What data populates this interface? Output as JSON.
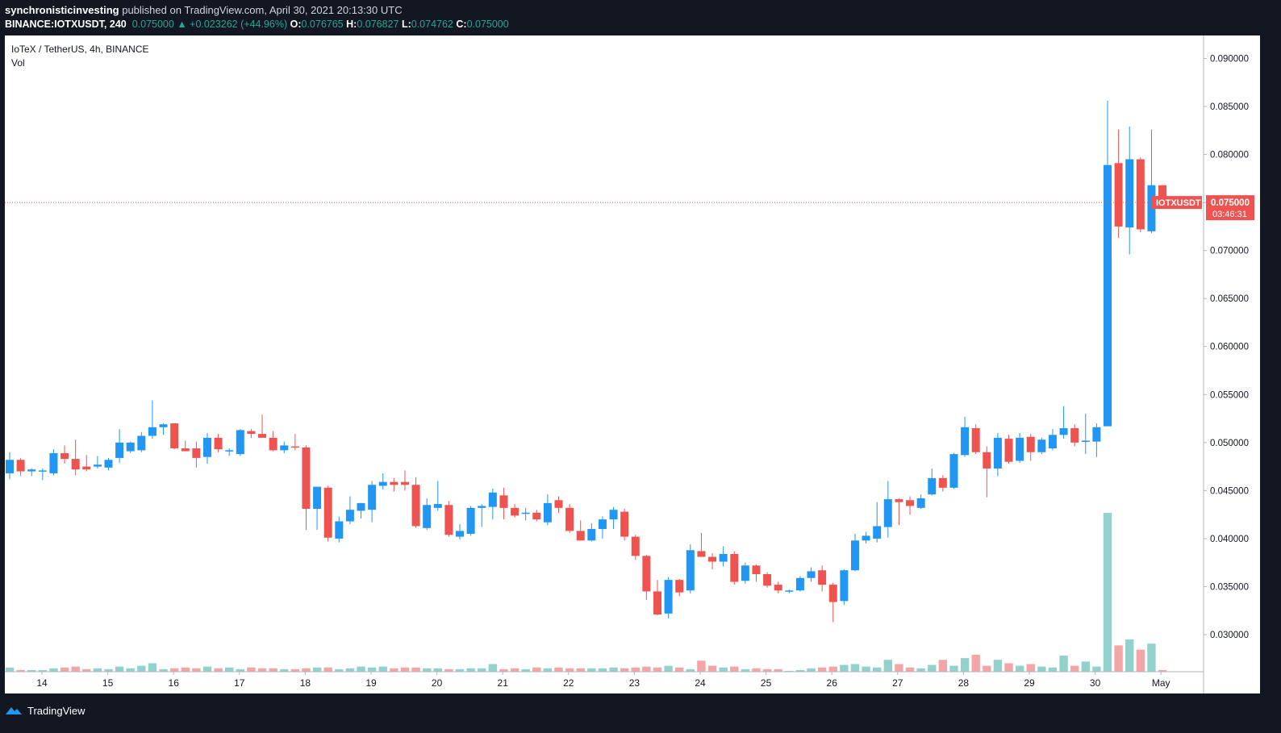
{
  "header": {
    "author": "synchronisticinvesting",
    "published_text": "published on TradingView.com, April 30, 2021 20:13:30 UTC",
    "symbol_interval": "BINANCE:IOTXUSDT, 240",
    "last": "0.075000",
    "change": "+0.023262 (+44.96%)",
    "o_label": "O:",
    "o_value": "0.076765",
    "h_label": "H:",
    "h_value": "0.076827",
    "l_label": "L:",
    "l_value": "0.074762",
    "c_label": "C:",
    "c_value": "0.075000"
  },
  "legend": {
    "title": "IoTeX / TetherUS, 4h, BINANCE",
    "volume_label": "Vol"
  },
  "price_tag": {
    "symbol": "IOTXUSDT",
    "price": "0.075000",
    "countdown": "03:46:31"
  },
  "footer": {
    "brand": "TradingView"
  },
  "colors": {
    "up": "#2196f3",
    "down": "#ef5350",
    "vol_up": "#93d2cc",
    "vol_down": "#f4a5a5",
    "price_line": "#ef5350"
  },
  "chart_data": {
    "type": "candlestick",
    "title": "IoTeX / TetherUS, 4h, BINANCE",
    "y_ticks": [
      "0.090000",
      "0.085000",
      "0.080000",
      "0.075000",
      "0.070000",
      "0.065000",
      "0.060000",
      "0.055000",
      "0.050000",
      "0.045000",
      "0.040000",
      "0.035000",
      "0.030000"
    ],
    "x_ticks": [
      "14",
      "15",
      "16",
      "17",
      "18",
      "19",
      "20",
      "21",
      "22",
      "23",
      "24",
      "25",
      "26",
      "27",
      "28",
      "29",
      "30",
      "May"
    ],
    "ylim": [
      0.02614,
      0.09239
    ],
    "current_price": 0.075,
    "grid": false,
    "candles": [
      {
        "o": 0.0468,
        "h": 0.049,
        "l": 0.0462,
        "c": 0.0482
      },
      {
        "o": 0.0482,
        "h": 0.0484,
        "l": 0.0465,
        "c": 0.047
      },
      {
        "o": 0.047,
        "h": 0.0473,
        "l": 0.0465,
        "c": 0.0472
      },
      {
        "o": 0.047,
        "h": 0.0473,
        "l": 0.0461,
        "c": 0.0471
      },
      {
        "o": 0.0468,
        "h": 0.0493,
        "l": 0.0466,
        "c": 0.0489
      },
      {
        "o": 0.0489,
        "h": 0.0497,
        "l": 0.0478,
        "c": 0.0483
      },
      {
        "o": 0.0483,
        "h": 0.0503,
        "l": 0.0466,
        "c": 0.0472
      },
      {
        "o": 0.0475,
        "h": 0.0487,
        "l": 0.047,
        "c": 0.0472
      },
      {
        "o": 0.0475,
        "h": 0.0486,
        "l": 0.0473,
        "c": 0.0477
      },
      {
        "o": 0.0474,
        "h": 0.0484,
        "l": 0.0471,
        "c": 0.0482
      },
      {
        "o": 0.0484,
        "h": 0.0514,
        "l": 0.0479,
        "c": 0.05
      },
      {
        "o": 0.0491,
        "h": 0.0501,
        "l": 0.0489,
        "c": 0.05
      },
      {
        "o": 0.0492,
        "h": 0.0511,
        "l": 0.049,
        "c": 0.0507
      },
      {
        "o": 0.0507,
        "h": 0.0544,
        "l": 0.0504,
        "c": 0.0516
      },
      {
        "o": 0.0516,
        "h": 0.052,
        "l": 0.0508,
        "c": 0.0519
      },
      {
        "o": 0.052,
        "h": 0.052,
        "l": 0.0493,
        "c": 0.0494
      },
      {
        "o": 0.0494,
        "h": 0.0502,
        "l": 0.0491,
        "c": 0.0491
      },
      {
        "o": 0.0494,
        "h": 0.0501,
        "l": 0.0474,
        "c": 0.0484
      },
      {
        "o": 0.0485,
        "h": 0.051,
        "l": 0.0478,
        "c": 0.0505
      },
      {
        "o": 0.0505,
        "h": 0.0509,
        "l": 0.049,
        "c": 0.0493
      },
      {
        "o": 0.0491,
        "h": 0.0494,
        "l": 0.0486,
        "c": 0.0492
      },
      {
        "o": 0.0488,
        "h": 0.0514,
        "l": 0.0486,
        "c": 0.0513
      },
      {
        "o": 0.0512,
        "h": 0.0514,
        "l": 0.0505,
        "c": 0.0509
      },
      {
        "o": 0.0509,
        "h": 0.0529,
        "l": 0.0505,
        "c": 0.0505
      },
      {
        "o": 0.0505,
        "h": 0.0512,
        "l": 0.0491,
        "c": 0.0492
      },
      {
        "o": 0.0492,
        "h": 0.0501,
        "l": 0.0489,
        "c": 0.0497
      },
      {
        "o": 0.0496,
        "h": 0.0509,
        "l": 0.0492,
        "c": 0.0495
      },
      {
        "o": 0.0495,
        "h": 0.0497,
        "l": 0.0409,
        "c": 0.0431
      },
      {
        "o": 0.0431,
        "h": 0.0454,
        "l": 0.0409,
        "c": 0.0454
      },
      {
        "o": 0.0453,
        "h": 0.0455,
        "l": 0.0397,
        "c": 0.0401
      },
      {
        "o": 0.04,
        "h": 0.0423,
        "l": 0.0396,
        "c": 0.0418
      },
      {
        "o": 0.0418,
        "h": 0.0444,
        "l": 0.0415,
        "c": 0.043
      },
      {
        "o": 0.0429,
        "h": 0.0437,
        "l": 0.0421,
        "c": 0.0437
      },
      {
        "o": 0.043,
        "h": 0.046,
        "l": 0.0417,
        "c": 0.0456
      },
      {
        "o": 0.0455,
        "h": 0.0468,
        "l": 0.0451,
        "c": 0.0459
      },
      {
        "o": 0.0459,
        "h": 0.0463,
        "l": 0.0449,
        "c": 0.0456
      },
      {
        "o": 0.0459,
        "h": 0.0471,
        "l": 0.045,
        "c": 0.0456
      },
      {
        "o": 0.0456,
        "h": 0.0464,
        "l": 0.0411,
        "c": 0.0413
      },
      {
        "o": 0.0411,
        "h": 0.0442,
        "l": 0.0409,
        "c": 0.0435
      },
      {
        "o": 0.0432,
        "h": 0.046,
        "l": 0.0429,
        "c": 0.0436
      },
      {
        "o": 0.0435,
        "h": 0.0439,
        "l": 0.0402,
        "c": 0.0404
      },
      {
        "o": 0.0402,
        "h": 0.0415,
        "l": 0.0399,
        "c": 0.0408
      },
      {
        "o": 0.0405,
        "h": 0.0434,
        "l": 0.0403,
        "c": 0.0432
      },
      {
        "o": 0.0432,
        "h": 0.0436,
        "l": 0.0412,
        "c": 0.0434
      },
      {
        "o": 0.0433,
        "h": 0.0452,
        "l": 0.042,
        "c": 0.0448
      },
      {
        "o": 0.0445,
        "h": 0.0453,
        "l": 0.042,
        "c": 0.0432
      },
      {
        "o": 0.0432,
        "h": 0.0436,
        "l": 0.0422,
        "c": 0.0424
      },
      {
        "o": 0.0426,
        "h": 0.0432,
        "l": 0.0419,
        "c": 0.0427
      },
      {
        "o": 0.0427,
        "h": 0.043,
        "l": 0.0418,
        "c": 0.042
      },
      {
        "o": 0.0417,
        "h": 0.0446,
        "l": 0.0414,
        "c": 0.0437
      },
      {
        "o": 0.044,
        "h": 0.0444,
        "l": 0.0427,
        "c": 0.0432
      },
      {
        "o": 0.0432,
        "h": 0.0436,
        "l": 0.0406,
        "c": 0.0408
      },
      {
        "o": 0.0408,
        "h": 0.0419,
        "l": 0.0398,
        "c": 0.0398
      },
      {
        "o": 0.0398,
        "h": 0.0416,
        "l": 0.0397,
        "c": 0.041
      },
      {
        "o": 0.041,
        "h": 0.0423,
        "l": 0.04,
        "c": 0.042
      },
      {
        "o": 0.042,
        "h": 0.0433,
        "l": 0.041,
        "c": 0.043
      },
      {
        "o": 0.0428,
        "h": 0.0431,
        "l": 0.0398,
        "c": 0.0402
      },
      {
        "o": 0.0402,
        "h": 0.0404,
        "l": 0.0378,
        "c": 0.0382
      },
      {
        "o": 0.0382,
        "h": 0.0383,
        "l": 0.0336,
        "c": 0.0345
      },
      {
        "o": 0.0345,
        "h": 0.0357,
        "l": 0.032,
        "c": 0.0321
      },
      {
        "o": 0.0322,
        "h": 0.036,
        "l": 0.0317,
        "c": 0.0357
      },
      {
        "o": 0.0357,
        "h": 0.0358,
        "l": 0.034,
        "c": 0.0344
      },
      {
        "o": 0.0346,
        "h": 0.0394,
        "l": 0.0343,
        "c": 0.0388
      },
      {
        "o": 0.0387,
        "h": 0.0406,
        "l": 0.0382,
        "c": 0.0381
      },
      {
        "o": 0.0381,
        "h": 0.0385,
        "l": 0.0368,
        "c": 0.0376
      },
      {
        "o": 0.0376,
        "h": 0.0392,
        "l": 0.0371,
        "c": 0.0384
      },
      {
        "o": 0.0384,
        "h": 0.0387,
        "l": 0.0352,
        "c": 0.0355
      },
      {
        "o": 0.0356,
        "h": 0.0375,
        "l": 0.0353,
        "c": 0.0372
      },
      {
        "o": 0.0372,
        "h": 0.0373,
        "l": 0.0355,
        "c": 0.0363
      },
      {
        "o": 0.0363,
        "h": 0.0365,
        "l": 0.0349,
        "c": 0.0351
      },
      {
        "o": 0.0352,
        "h": 0.0355,
        "l": 0.0343,
        "c": 0.0346
      },
      {
        "o": 0.0345,
        "h": 0.0347,
        "l": 0.0343,
        "c": 0.0346
      },
      {
        "o": 0.0346,
        "h": 0.0361,
        "l": 0.0345,
        "c": 0.0359
      },
      {
        "o": 0.0359,
        "h": 0.037,
        "l": 0.0355,
        "c": 0.0366
      },
      {
        "o": 0.0367,
        "h": 0.0372,
        "l": 0.0345,
        "c": 0.0352
      },
      {
        "o": 0.0352,
        "h": 0.0354,
        "l": 0.0313,
        "c": 0.0334
      },
      {
        "o": 0.0335,
        "h": 0.0368,
        "l": 0.0331,
        "c": 0.0367
      },
      {
        "o": 0.0367,
        "h": 0.0405,
        "l": 0.0366,
        "c": 0.0398
      },
      {
        "o": 0.0398,
        "h": 0.0407,
        "l": 0.0395,
        "c": 0.0403
      },
      {
        "o": 0.04,
        "h": 0.0438,
        "l": 0.0396,
        "c": 0.0413
      },
      {
        "o": 0.0412,
        "h": 0.046,
        "l": 0.0401,
        "c": 0.0441
      },
      {
        "o": 0.0441,
        "h": 0.0442,
        "l": 0.0414,
        "c": 0.0438
      },
      {
        "o": 0.044,
        "h": 0.0444,
        "l": 0.0425,
        "c": 0.0434
      },
      {
        "o": 0.0432,
        "h": 0.0446,
        "l": 0.0431,
        "c": 0.0442
      },
      {
        "o": 0.0446,
        "h": 0.0473,
        "l": 0.0445,
        "c": 0.0463
      },
      {
        "o": 0.0463,
        "h": 0.0466,
        "l": 0.0449,
        "c": 0.0453
      },
      {
        "o": 0.0453,
        "h": 0.0489,
        "l": 0.0452,
        "c": 0.0488
      },
      {
        "o": 0.0487,
        "h": 0.0527,
        "l": 0.0485,
        "c": 0.0516
      },
      {
        "o": 0.0515,
        "h": 0.0519,
        "l": 0.0488,
        "c": 0.049
      },
      {
        "o": 0.049,
        "h": 0.0496,
        "l": 0.0443,
        "c": 0.0473
      },
      {
        "o": 0.0473,
        "h": 0.051,
        "l": 0.0465,
        "c": 0.0505
      },
      {
        "o": 0.0504,
        "h": 0.0508,
        "l": 0.0478,
        "c": 0.048
      },
      {
        "o": 0.0481,
        "h": 0.051,
        "l": 0.0479,
        "c": 0.0505
      },
      {
        "o": 0.0506,
        "h": 0.0509,
        "l": 0.0481,
        "c": 0.049
      },
      {
        "o": 0.049,
        "h": 0.0505,
        "l": 0.0488,
        "c": 0.0503
      },
      {
        "o": 0.0494,
        "h": 0.0514,
        "l": 0.0492,
        "c": 0.0508
      },
      {
        "o": 0.0508,
        "h": 0.0538,
        "l": 0.0504,
        "c": 0.0515
      },
      {
        "o": 0.0515,
        "h": 0.0519,
        "l": 0.0496,
        "c": 0.05
      },
      {
        "o": 0.0502,
        "h": 0.053,
        "l": 0.0488,
        "c": 0.0502
      },
      {
        "o": 0.0501,
        "h": 0.052,
        "l": 0.0485,
        "c": 0.0516
      },
      {
        "o": 0.0517,
        "h": 0.0856,
        "l": 0.0517,
        "c": 0.0789
      },
      {
        "o": 0.0791,
        "h": 0.0826,
        "l": 0.0713,
        "c": 0.0725
      },
      {
        "o": 0.0724,
        "h": 0.0829,
        "l": 0.0696,
        "c": 0.0795
      },
      {
        "o": 0.0795,
        "h": 0.0797,
        "l": 0.0719,
        "c": 0.0722
      },
      {
        "o": 0.072,
        "h": 0.0826,
        "l": 0.0718,
        "c": 0.0768
      },
      {
        "o": 0.0768,
        "h": 0.0768,
        "l": 0.0748,
        "c": 0.075
      }
    ],
    "volume": [
      5,
      2,
      2,
      2,
      4,
      5,
      6,
      3,
      4,
      3,
      6,
      4,
      7,
      10,
      3,
      4,
      5,
      4,
      6,
      4,
      5,
      3,
      5,
      4,
      4,
      3,
      3,
      4,
      5,
      5,
      3,
      4,
      6,
      5,
      6,
      4,
      5,
      5,
      4,
      4,
      3,
      3,
      4,
      4,
      9,
      3,
      4,
      3,
      5,
      4,
      5,
      4,
      4,
      4,
      4,
      5,
      4,
      5,
      6,
      5,
      7,
      5,
      3,
      13,
      7,
      5,
      6,
      3,
      4,
      3,
      3,
      1,
      2,
      4,
      5,
      6,
      8,
      9,
      6,
      5,
      14,
      9,
      5,
      4,
      8,
      14,
      7,
      16,
      20,
      7,
      14,
      10,
      7,
      9,
      6,
      5,
      19,
      7,
      12,
      6,
      187,
      31,
      38,
      26,
      33,
      2
    ]
  }
}
